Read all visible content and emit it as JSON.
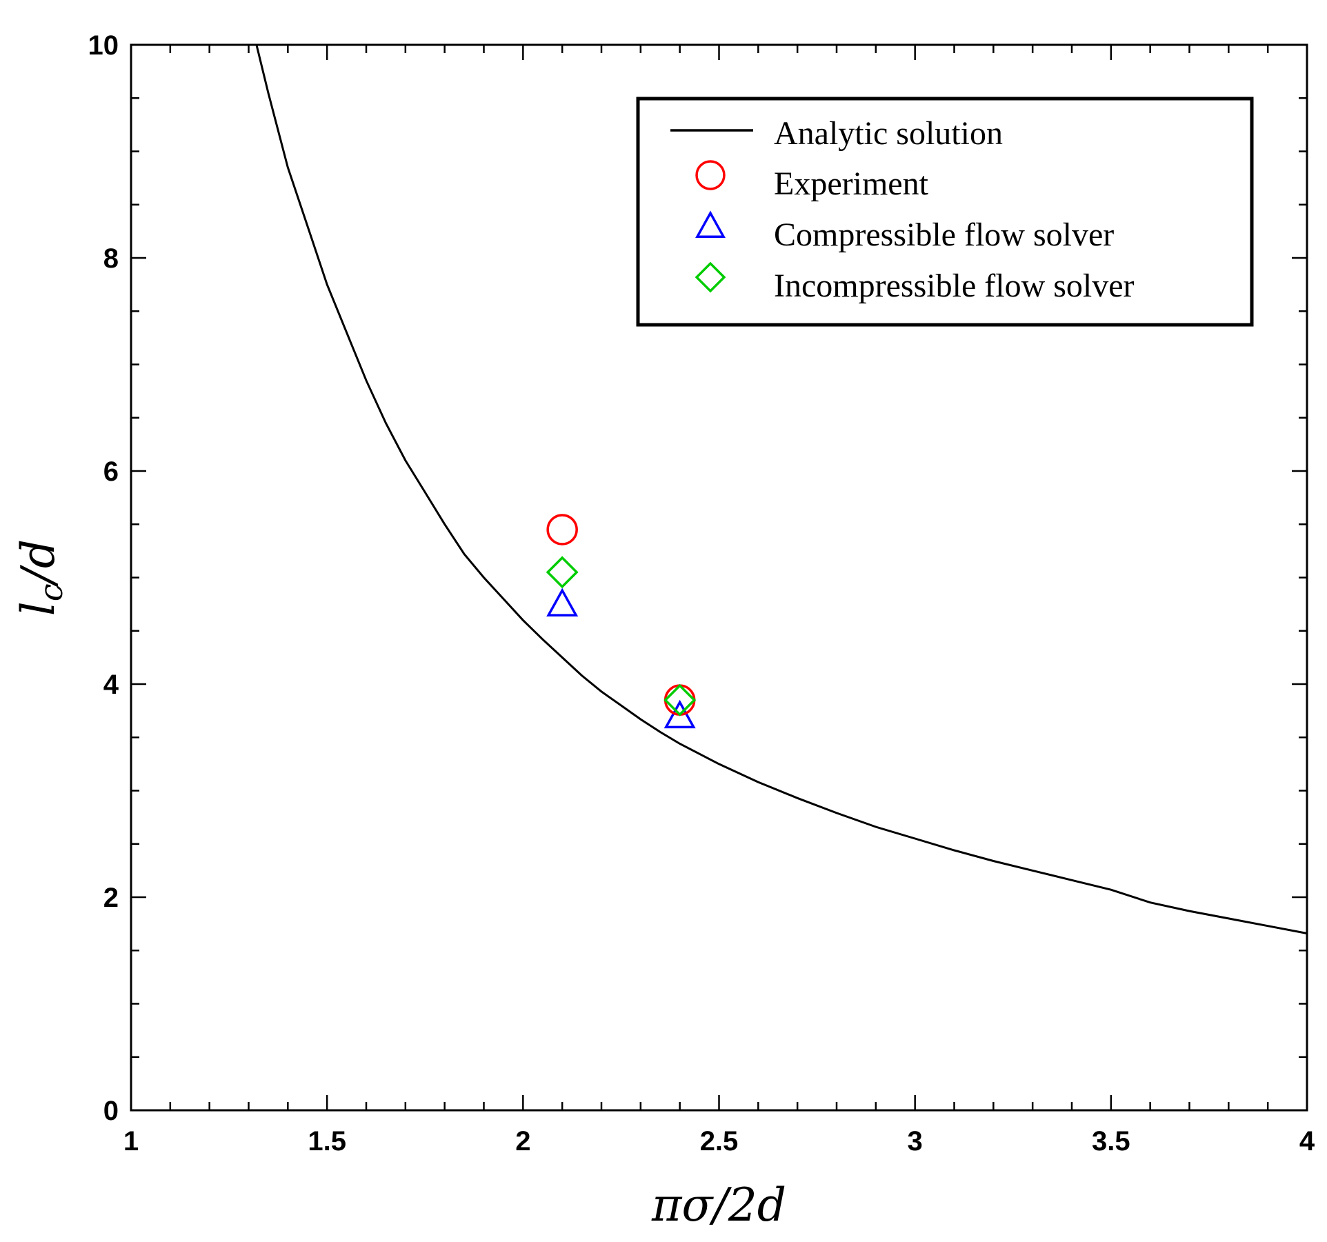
{
  "chart_data": {
    "type": "scatter",
    "title": "",
    "xlabel": "πσ/2d",
    "ylabel": "l_c/d",
    "ylabel_main": "l",
    "ylabel_sub": "c",
    "ylabel_rest": "/d",
    "xlim": [
      1,
      4
    ],
    "ylim": [
      0,
      10
    ],
    "x_ticks": [
      1,
      1.5,
      2,
      2.5,
      3,
      3.5,
      4
    ],
    "x_tick_labels": [
      "1",
      "1.5",
      "2",
      "2.5",
      "3",
      "3.5",
      "4"
    ],
    "x_minor_step": 0.1,
    "y_ticks": [
      0,
      2,
      4,
      6,
      8,
      10
    ],
    "y_tick_labels": [
      "0",
      "2",
      "4",
      "6",
      "8",
      "10"
    ],
    "y_minor_step": 0.5,
    "grid": false,
    "legend_position": "top-right",
    "series": [
      {
        "name": "Analytic solution",
        "kind": "line",
        "color": "#000000",
        "points": [
          [
            1.32,
            10.0
          ],
          [
            1.35,
            9.55
          ],
          [
            1.4,
            8.85
          ],
          [
            1.45,
            8.3
          ],
          [
            1.5,
            7.75
          ],
          [
            1.55,
            7.3
          ],
          [
            1.6,
            6.85
          ],
          [
            1.65,
            6.45
          ],
          [
            1.7,
            6.1
          ],
          [
            1.75,
            5.8
          ],
          [
            1.8,
            5.5
          ],
          [
            1.85,
            5.22
          ],
          [
            1.9,
            5.0
          ],
          [
            1.95,
            4.8
          ],
          [
            2.0,
            4.6
          ],
          [
            2.05,
            4.42
          ],
          [
            2.1,
            4.25
          ],
          [
            2.15,
            4.08
          ],
          [
            2.2,
            3.93
          ],
          [
            2.25,
            3.8
          ],
          [
            2.3,
            3.67
          ],
          [
            2.35,
            3.55
          ],
          [
            2.4,
            3.44
          ],
          [
            2.5,
            3.25
          ],
          [
            2.6,
            3.08
          ],
          [
            2.7,
            2.93
          ],
          [
            2.8,
            2.79
          ],
          [
            2.9,
            2.66
          ],
          [
            3.0,
            2.55
          ],
          [
            3.1,
            2.44
          ],
          [
            3.2,
            2.34
          ],
          [
            3.3,
            2.25
          ],
          [
            3.4,
            2.16
          ],
          [
            3.5,
            2.07
          ],
          [
            3.6,
            1.95
          ],
          [
            3.7,
            1.87
          ],
          [
            3.8,
            1.8
          ],
          [
            3.9,
            1.73
          ],
          [
            4.0,
            1.66
          ]
        ]
      },
      {
        "name": "Experiment",
        "kind": "marker",
        "marker": "circle",
        "color": "#ff0000",
        "points": [
          [
            2.1,
            5.45
          ],
          [
            2.4,
            3.85
          ]
        ]
      },
      {
        "name": "Compressible flow solver",
        "kind": "marker",
        "marker": "triangle",
        "color": "#0000ff",
        "points": [
          [
            2.1,
            4.75
          ],
          [
            2.4,
            3.7
          ]
        ]
      },
      {
        "name": "Incompressible flow solver",
        "kind": "marker",
        "marker": "diamond",
        "color": "#00cc00",
        "points": [
          [
            2.1,
            5.05
          ],
          [
            2.4,
            3.85
          ]
        ]
      }
    ]
  }
}
